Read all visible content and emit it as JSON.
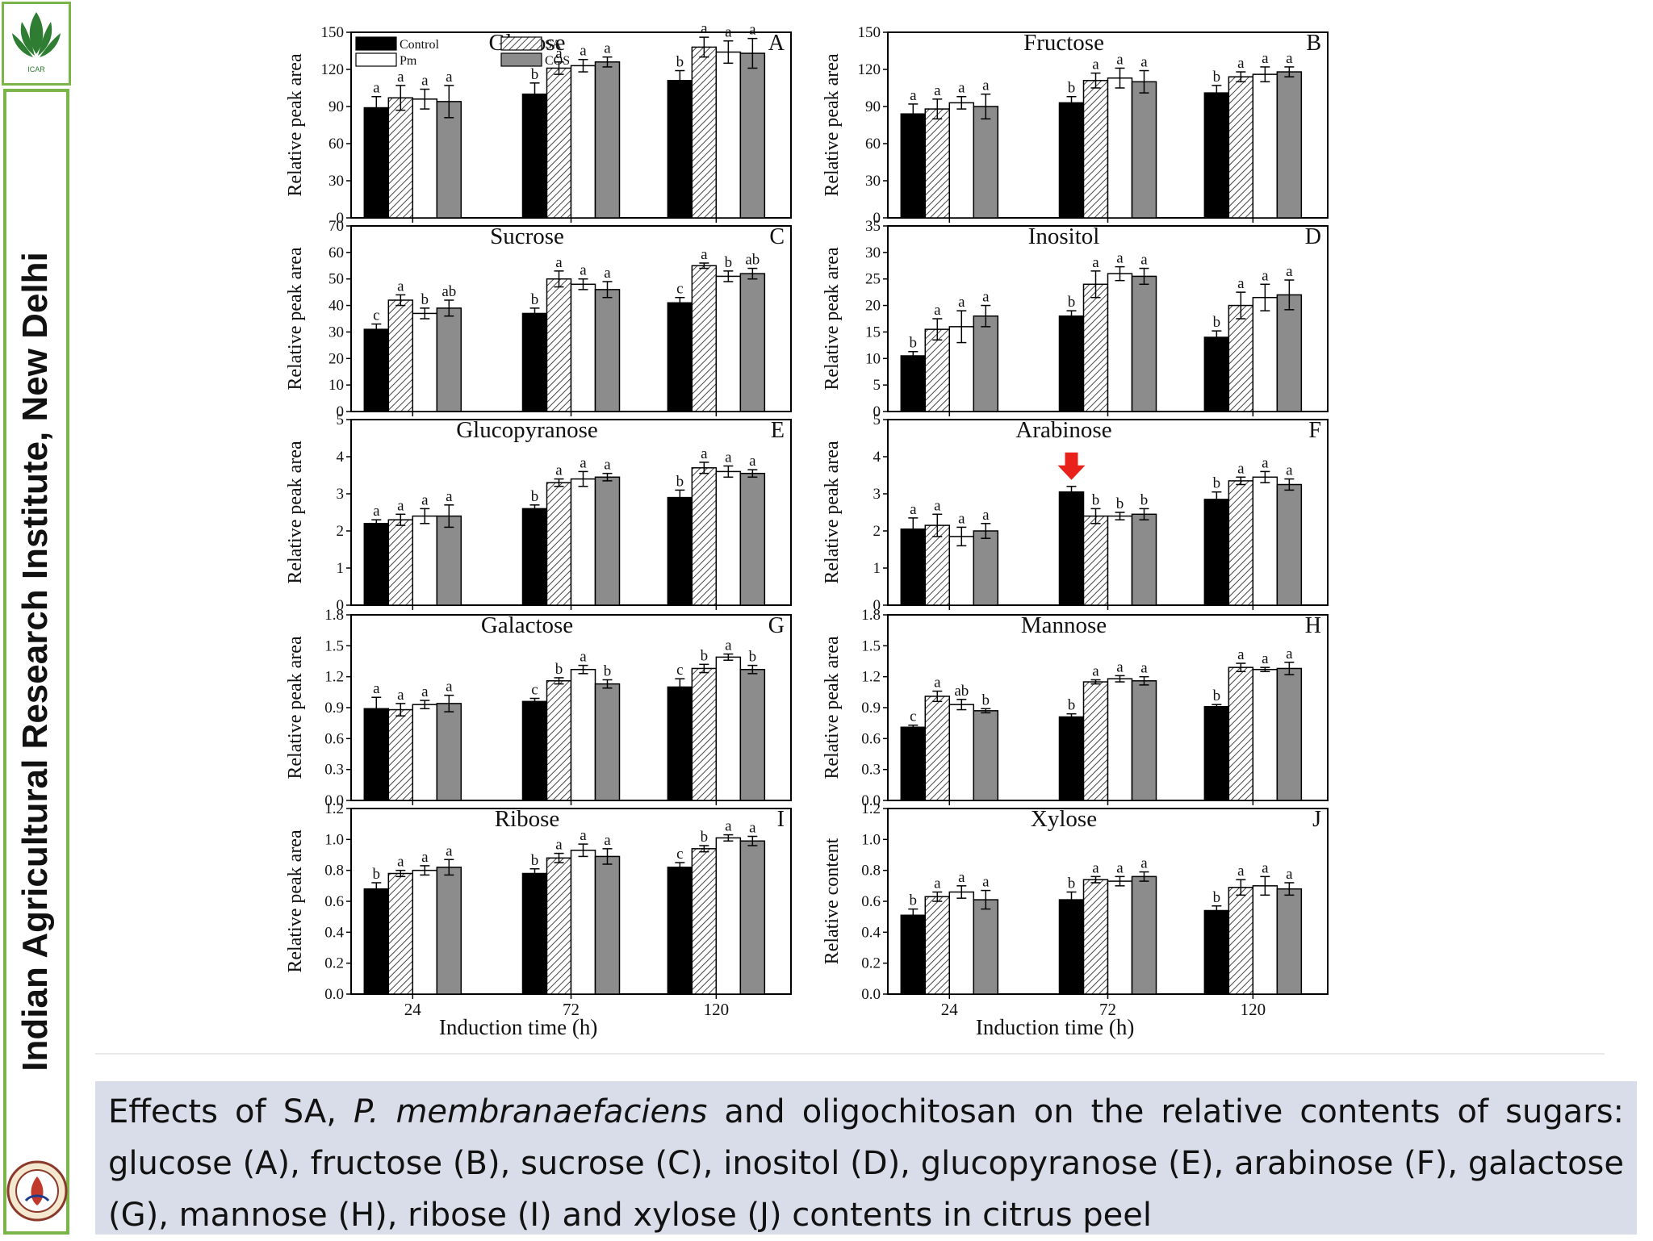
{
  "sidebar": {
    "institute": "Indian Agricultural Research Institute, New Delhi",
    "logo_top_text": "ICAR"
  },
  "caption": {
    "prefix": "Effects of SA, ",
    "species": "P. membranaefaciens",
    "suffix": " and oligochitosan on the relative contents of sugars: glucose (A), fructose (B), sucrose (C), inositol (D), glucopyranose (E), arabinose (F), galactose (G), mannose (H), ribose (I) and xylose (J) contents in citrus peel"
  },
  "colors": {
    "control": "#000000",
    "sa": "#ffffff",
    "pm": "#ffffff",
    "cos": "#8c8c8c",
    "arrow": "#e8221b",
    "sidebar_border": "#7bb54a",
    "caption_bg": "#d9dce9"
  },
  "legend": [
    "Control",
    "SA",
    "Pm",
    "COS"
  ],
  "xlabel": "Induction time (h)",
  "chart_data": [
    {
      "type": "bar",
      "letter": "A",
      "title": "Glucose",
      "ylabel": "Relative peak area",
      "ylim": [
        0,
        150
      ],
      "yticks": [
        0,
        30,
        60,
        90,
        120,
        150
      ],
      "categories": [
        "24",
        "72",
        "120"
      ],
      "series": [
        {
          "name": "Control",
          "values": [
            89,
            100,
            111
          ]
        },
        {
          "name": "SA",
          "values": [
            97,
            121,
            138
          ]
        },
        {
          "name": "Pm",
          "values": [
            96,
            123,
            134
          ]
        },
        {
          "name": "COS",
          "values": [
            94,
            126,
            133
          ]
        }
      ],
      "errors": [
        [
          9,
          9,
          8
        ],
        [
          10,
          5,
          8
        ],
        [
          8,
          5,
          9
        ],
        [
          13,
          4,
          12
        ]
      ],
      "labels": [
        [
          "a",
          "b",
          "b"
        ],
        [
          "a",
          "a",
          "a"
        ],
        [
          "a",
          "a",
          "a"
        ],
        [
          "a",
          "a",
          "a"
        ]
      ]
    },
    {
      "type": "bar",
      "letter": "B",
      "title": "Fructose",
      "ylabel": "Relative peak area",
      "ylim": [
        0,
        150
      ],
      "yticks": [
        0,
        30,
        60,
        90,
        120,
        150
      ],
      "categories": [
        "24",
        "72",
        "120"
      ],
      "series": [
        {
          "name": "Control",
          "values": [
            84,
            93,
            101
          ]
        },
        {
          "name": "SA",
          "values": [
            88,
            111,
            114
          ]
        },
        {
          "name": "Pm",
          "values": [
            93,
            113,
            116
          ]
        },
        {
          "name": "COS",
          "values": [
            90,
            110,
            118
          ]
        }
      ],
      "errors": [
        [
          8,
          5,
          6
        ],
        [
          8,
          6,
          4
        ],
        [
          5,
          8,
          6
        ],
        [
          10,
          9,
          4
        ]
      ],
      "labels": [
        [
          "a",
          "b",
          "b"
        ],
        [
          "a",
          "a",
          "a"
        ],
        [
          "a",
          "a",
          "a"
        ],
        [
          "a",
          "a",
          "a"
        ]
      ]
    },
    {
      "type": "bar",
      "letter": "C",
      "title": "Sucrose",
      "ylabel": "Relative peak area",
      "ylim": [
        0,
        70
      ],
      "yticks": [
        0,
        10,
        20,
        30,
        40,
        50,
        60,
        70
      ],
      "categories": [
        "24",
        "72",
        "120"
      ],
      "series": [
        {
          "name": "Control",
          "values": [
            31,
            37,
            41
          ]
        },
        {
          "name": "SA",
          "values": [
            42,
            50,
            55
          ]
        },
        {
          "name": "Pm",
          "values": [
            37,
            48,
            51
          ]
        },
        {
          "name": "COS",
          "values": [
            39,
            46,
            52
          ]
        }
      ],
      "errors": [
        [
          2,
          2,
          2
        ],
        [
          2,
          3,
          1
        ],
        [
          2,
          2,
          2
        ],
        [
          3,
          3,
          2
        ]
      ],
      "labels": [
        [
          "c",
          "b",
          "c"
        ],
        [
          "a",
          "a",
          "a"
        ],
        [
          "b",
          "a",
          "b"
        ],
        [
          "ab",
          "a",
          "ab"
        ]
      ]
    },
    {
      "type": "bar",
      "letter": "D",
      "title": "Inositol",
      "ylabel": "Relative peak area",
      "ylim": [
        0,
        35
      ],
      "yticks": [
        0,
        5,
        10,
        15,
        20,
        25,
        30,
        35
      ],
      "categories": [
        "24",
        "72",
        "120"
      ],
      "series": [
        {
          "name": "Control",
          "values": [
            10.5,
            18,
            14
          ]
        },
        {
          "name": "SA",
          "values": [
            15.5,
            24,
            20
          ]
        },
        {
          "name": "Pm",
          "values": [
            16,
            26,
            21.5
          ]
        },
        {
          "name": "COS",
          "values": [
            18,
            25.5,
            22
          ]
        }
      ],
      "errors": [
        [
          0.8,
          1,
          1.2
        ],
        [
          2,
          2.5,
          2.5
        ],
        [
          3,
          1.3,
          2.5
        ],
        [
          2,
          1.5,
          2.8
        ]
      ],
      "labels": [
        [
          "b",
          "b",
          "b"
        ],
        [
          "a",
          "a",
          "a"
        ],
        [
          "a",
          "a",
          "a"
        ],
        [
          "a",
          "a",
          "a"
        ]
      ]
    },
    {
      "type": "bar",
      "letter": "E",
      "title": "Glucopyranose",
      "ylabel": "Relative peak area",
      "ylim": [
        0,
        5
      ],
      "yticks": [
        0,
        1,
        2,
        3,
        4,
        5
      ],
      "categories": [
        "24",
        "72",
        "120"
      ],
      "series": [
        {
          "name": "Control",
          "values": [
            2.2,
            2.6,
            2.9
          ]
        },
        {
          "name": "SA",
          "values": [
            2.3,
            3.3,
            3.7
          ]
        },
        {
          "name": "Pm",
          "values": [
            2.4,
            3.4,
            3.6
          ]
        },
        {
          "name": "COS",
          "values": [
            2.4,
            3.45,
            3.55
          ]
        }
      ],
      "errors": [
        [
          0.1,
          0.1,
          0.2
        ],
        [
          0.15,
          0.1,
          0.15
        ],
        [
          0.2,
          0.2,
          0.15
        ],
        [
          0.3,
          0.1,
          0.1
        ]
      ],
      "labels": [
        [
          "a",
          "b",
          "b"
        ],
        [
          "a",
          "a",
          "a"
        ],
        [
          "a",
          "a",
          "a"
        ],
        [
          "a",
          "a",
          "a"
        ]
      ]
    },
    {
      "type": "bar",
      "letter": "F",
      "title": "Arabinose",
      "ylabel": "Relative peak area",
      "ylim": [
        0,
        5
      ],
      "yticks": [
        0,
        1,
        2,
        3,
        4,
        5
      ],
      "categories": [
        "24",
        "72",
        "120"
      ],
      "series": [
        {
          "name": "Control",
          "values": [
            2.05,
            3.05,
            2.85
          ]
        },
        {
          "name": "SA",
          "values": [
            2.15,
            2.4,
            3.35
          ]
        },
        {
          "name": "Pm",
          "values": [
            1.85,
            2.4,
            3.45
          ]
        },
        {
          "name": "COS",
          "values": [
            2.0,
            2.45,
            3.25
          ]
        }
      ],
      "errors": [
        [
          0.3,
          0.15,
          0.2
        ],
        [
          0.3,
          0.2,
          0.1
        ],
        [
          0.25,
          0.1,
          0.15
        ],
        [
          0.2,
          0.15,
          0.15
        ]
      ],
      "labels": [
        [
          "a",
          "",
          "b"
        ],
        [
          "a",
          "b",
          "a"
        ],
        [
          "a",
          "b",
          "a"
        ],
        [
          "a",
          "b",
          "a"
        ]
      ]
    },
    {
      "type": "bar",
      "letter": "G",
      "title": "Galactose",
      "ylabel": "Relative peak area",
      "ylim": [
        0,
        1.8
      ],
      "yticks": [
        "0.0",
        "0.3",
        "0.6",
        "0.9",
        "1.2",
        "1.5",
        "1.8"
      ],
      "categories": [
        "24",
        "72",
        "120"
      ],
      "series": [
        {
          "name": "Control",
          "values": [
            0.89,
            0.96,
            1.1
          ]
        },
        {
          "name": "SA",
          "values": [
            0.88,
            1.16,
            1.28
          ]
        },
        {
          "name": "Pm",
          "values": [
            0.93,
            1.27,
            1.39
          ]
        },
        {
          "name": "COS",
          "values": [
            0.94,
            1.13,
            1.27
          ]
        }
      ],
      "errors": [
        [
          0.11,
          0.03,
          0.08
        ],
        [
          0.06,
          0.03,
          0.04
        ],
        [
          0.04,
          0.04,
          0.03
        ],
        [
          0.08,
          0.04,
          0.04
        ]
      ],
      "labels": [
        [
          "a",
          "c",
          "c"
        ],
        [
          "a",
          "b",
          "b"
        ],
        [
          "a",
          "a",
          "a"
        ],
        [
          "a",
          "b",
          "b"
        ]
      ]
    },
    {
      "type": "bar",
      "letter": "H",
      "title": "Mannose",
      "ylabel": "Relative peak area",
      "ylim": [
        0,
        1.8
      ],
      "yticks": [
        "0.0",
        "0.3",
        "0.6",
        "0.9",
        "1.2",
        "1.5",
        "1.8"
      ],
      "categories": [
        "24",
        "72",
        "120"
      ],
      "series": [
        {
          "name": "Control",
          "values": [
            0.71,
            0.81,
            0.91
          ]
        },
        {
          "name": "SA",
          "values": [
            1.01,
            1.15,
            1.29
          ]
        },
        {
          "name": "Pm",
          "values": [
            0.93,
            1.18,
            1.27
          ]
        },
        {
          "name": "COS",
          "values": [
            0.87,
            1.16,
            1.28
          ]
        }
      ],
      "errors": [
        [
          0.02,
          0.03,
          0.02
        ],
        [
          0.05,
          0.02,
          0.04
        ],
        [
          0.05,
          0.03,
          0.02
        ],
        [
          0.02,
          0.04,
          0.06
        ]
      ],
      "labels": [
        [
          "c",
          "b",
          "b"
        ],
        [
          "a",
          "a",
          "a"
        ],
        [
          "ab",
          "a",
          "a"
        ],
        [
          "b",
          "a",
          "a"
        ]
      ]
    },
    {
      "type": "bar",
      "letter": "I",
      "title": "Ribose",
      "ylabel": "Relative peak area",
      "ylim": [
        0,
        1.2
      ],
      "yticks": [
        "0.0",
        "0.2",
        "0.4",
        "0.6",
        "0.8",
        "1.0",
        "1.2"
      ],
      "categories": [
        "24",
        "72",
        "120"
      ],
      "series": [
        {
          "name": "Control",
          "values": [
            0.68,
            0.78,
            0.82
          ]
        },
        {
          "name": "SA",
          "values": [
            0.78,
            0.88,
            0.94
          ]
        },
        {
          "name": "Pm",
          "values": [
            0.8,
            0.93,
            1.01
          ]
        },
        {
          "name": "COS",
          "values": [
            0.82,
            0.89,
            0.99
          ]
        }
      ],
      "errors": [
        [
          0.04,
          0.03,
          0.03
        ],
        [
          0.02,
          0.03,
          0.02
        ],
        [
          0.03,
          0.04,
          0.02
        ],
        [
          0.05,
          0.05,
          0.03
        ]
      ],
      "labels": [
        [
          "b",
          "b",
          "c"
        ],
        [
          "a",
          "a",
          "b"
        ],
        [
          "a",
          "a",
          "a"
        ],
        [
          "a",
          "a",
          "a"
        ]
      ]
    },
    {
      "type": "bar",
      "letter": "J",
      "title": "Xylose",
      "ylabel": "Relative content",
      "ylim": [
        0,
        1.2
      ],
      "yticks": [
        "0.0",
        "0.2",
        "0.4",
        "0.6",
        "0.8",
        "1.0",
        "1.2"
      ],
      "categories": [
        "24",
        "72",
        "120"
      ],
      "series": [
        {
          "name": "Control",
          "values": [
            0.51,
            0.61,
            0.54
          ]
        },
        {
          "name": "SA",
          "values": [
            0.63,
            0.74,
            0.69
          ]
        },
        {
          "name": "Pm",
          "values": [
            0.66,
            0.73,
            0.7
          ]
        },
        {
          "name": "COS",
          "values": [
            0.61,
            0.76,
            0.68
          ]
        }
      ],
      "errors": [
        [
          0.04,
          0.05,
          0.03
        ],
        [
          0.03,
          0.02,
          0.05
        ],
        [
          0.04,
          0.03,
          0.06
        ],
        [
          0.06,
          0.03,
          0.04
        ]
      ],
      "labels": [
        [
          "b",
          "b",
          "b"
        ],
        [
          "a",
          "a",
          "a"
        ],
        [
          "a",
          "a",
          "a"
        ],
        [
          "a",
          "a",
          "a"
        ]
      ]
    }
  ]
}
